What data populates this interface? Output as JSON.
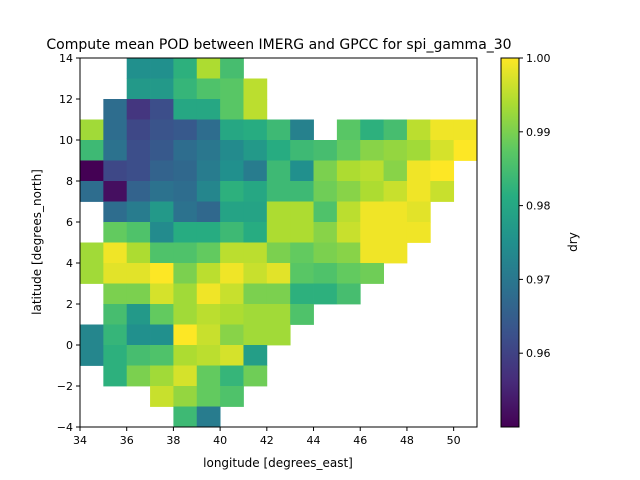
{
  "chart_data": {
    "type": "heatmap",
    "title": "Compute mean POD between IMERG and GPCC for spi_gamma_30",
    "xlabel": "longitude [degrees_east]",
    "ylabel": "latitude [degrees_north]",
    "colorbar_label": "dry",
    "colormap": "viridis",
    "xlim": [
      34,
      51
    ],
    "ylim": [
      -4,
      14
    ],
    "vmin": 0.95,
    "vmax": 1.0,
    "cell_size": 1,
    "x_ticks": [
      34,
      36,
      38,
      40,
      42,
      44,
      46,
      48,
      50
    ],
    "x_tick_labels": [
      "34",
      "36",
      "38",
      "40",
      "42",
      "44",
      "46",
      "48",
      "50"
    ],
    "y_ticks": [
      -4,
      -2,
      0,
      2,
      4,
      6,
      8,
      10,
      12,
      14
    ],
    "y_tick_labels": [
      "−4",
      "−2",
      "0",
      "2",
      "4",
      "6",
      "8",
      "10",
      "12",
      "14"
    ],
    "colorbar_ticks": [
      0.96,
      0.97,
      0.98,
      0.99,
      1.0
    ],
    "colorbar_tick_labels": [
      "0.96",
      "0.97",
      "0.98",
      "0.99",
      "1.00"
    ],
    "rows": [
      {
        "lat": 13.5,
        "lon_start": 36,
        "values": [
          0.975,
          0.975,
          0.982,
          0.994,
          0.985
        ]
      },
      {
        "lat": 12.5,
        "lon_start": 36,
        "values": [
          0.977,
          0.977,
          0.983,
          0.986,
          0.987,
          0.995
        ]
      },
      {
        "lat": 11.5,
        "lon_start": 35,
        "values": [
          0.968,
          0.958,
          0.962,
          0.98,
          0.98,
          0.987,
          0.995
        ]
      },
      {
        "lat": 10.5,
        "lon_start": 34,
        "values": [
          0.993,
          0.968,
          0.961,
          0.963,
          0.964,
          0.968,
          0.98,
          0.981,
          0.984,
          0.972,
          null,
          0.987,
          0.982,
          0.985,
          0.995,
          0.999,
          0.999
        ]
      },
      {
        "lat": 9.5,
        "lon_start": 34,
        "values": [
          0.984,
          0.969,
          0.962,
          0.964,
          0.968,
          0.97,
          0.974,
          0.977,
          0.981,
          0.984,
          0.985,
          0.988,
          0.991,
          0.992,
          0.993,
          0.997,
          1.0
        ]
      },
      {
        "lat": 8.5,
        "lon_start": 34,
        "values": [
          0.95,
          0.961,
          0.962,
          0.966,
          0.967,
          0.971,
          0.975,
          0.971,
          0.984,
          0.975,
          0.99,
          0.994,
          0.995,
          0.991,
          0.999,
          1.0
        ]
      },
      {
        "lat": 7.5,
        "lon_start": 34,
        "values": [
          0.968,
          0.952,
          0.966,
          0.969,
          0.968,
          0.973,
          0.982,
          0.98,
          0.984,
          0.984,
          0.989,
          0.991,
          0.994,
          0.996,
          0.999,
          0.996
        ]
      },
      {
        "lat": 6.5,
        "lon_start": 35,
        "values": [
          0.968,
          0.971,
          0.977,
          0.969,
          0.967,
          0.979,
          0.979,
          0.994,
          0.994,
          0.986,
          0.995,
          0.999,
          0.999,
          0.998
        ]
      },
      {
        "lat": 5.5,
        "lon_start": 35,
        "values": [
          0.988,
          0.986,
          0.974,
          0.981,
          0.981,
          0.984,
          0.981,
          0.994,
          0.994,
          0.991,
          0.996,
          0.999,
          0.999,
          0.999
        ]
      },
      {
        "lat": 4.5,
        "lon_start": 34,
        "values": [
          0.993,
          0.999,
          0.994,
          0.986,
          0.986,
          0.988,
          0.995,
          0.995,
          0.99,
          0.988,
          0.99,
          0.991,
          0.999,
          0.999
        ]
      },
      {
        "lat": 3.5,
        "lon_start": 34,
        "values": [
          0.993,
          0.998,
          0.998,
          1.0,
          0.99,
          0.995,
          0.999,
          0.996,
          0.998,
          0.987,
          0.986,
          0.988,
          0.989
        ]
      },
      {
        "lat": 2.5,
        "lon_start": 35,
        "values": [
          0.99,
          0.99,
          0.997,
          0.993,
          0.999,
          0.996,
          0.99,
          0.99,
          0.982,
          0.982,
          0.985
        ]
      },
      {
        "lat": 1.5,
        "lon_start": 35,
        "values": [
          0.985,
          0.977,
          0.988,
          0.993,
          0.995,
          0.994,
          0.993,
          0.993,
          0.986
        ]
      },
      {
        "lat": 0.5,
        "lon_start": 34,
        "values": [
          0.973,
          0.983,
          0.975,
          0.975,
          1.0,
          0.996,
          0.991,
          0.993,
          0.993
        ]
      },
      {
        "lat": -0.5,
        "lon_start": 34,
        "values": [
          0.973,
          0.982,
          0.985,
          0.986,
          0.994,
          0.995,
          0.997,
          0.978
        ]
      },
      {
        "lat": -1.5,
        "lon_start": 35,
        "values": [
          0.982,
          0.99,
          0.993,
          0.997,
          0.988,
          0.983,
          0.989
        ]
      },
      {
        "lat": -2.5,
        "lon_start": 37,
        "values": [
          0.996,
          0.992,
          0.988,
          0.986
        ]
      },
      {
        "lat": -3.5,
        "lon_start": 38,
        "values": [
          0.984,
          0.971
        ]
      }
    ]
  }
}
